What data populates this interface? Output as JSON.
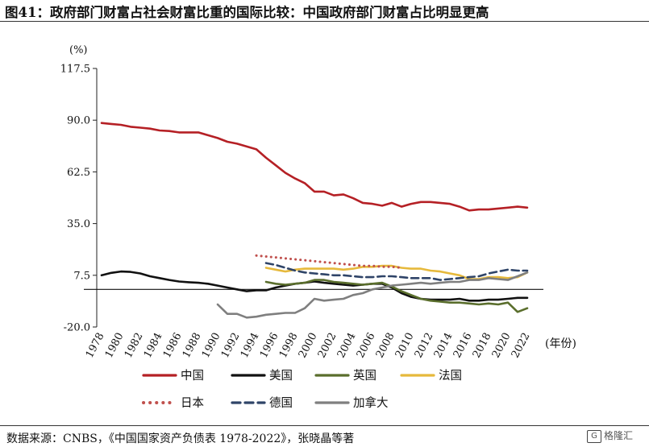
{
  "figure_title": "图41：政府部门财富占社会财富比重的国际比较：中国政府部门财富占比明显更高",
  "source": "数据来源：CNBS，《中国国家资产负债表 1978-2022》，张晓晶等著",
  "watermark": "格隆汇",
  "chart_data": {
    "type": "line",
    "ylabel": "(%)",
    "xlabel": "(年份)",
    "ylim": [
      -20.0,
      117.5
    ],
    "xlim": [
      1977.5,
      2023.5
    ],
    "yticks": [
      "117.5",
      "90.0",
      "62.5",
      "35.0",
      "7.5",
      "-20.0"
    ],
    "ytick_values": [
      117.5,
      90.0,
      62.5,
      35.0,
      7.5,
      -20.0
    ],
    "xticks": [
      1978,
      1980,
      1982,
      1984,
      1986,
      1988,
      1990,
      1992,
      1994,
      1996,
      1998,
      2000,
      2002,
      2004,
      2006,
      2008,
      2010,
      2012,
      2014,
      2016,
      2018,
      2020,
      2022
    ],
    "zero_line": 0,
    "grid": false,
    "legend_position": "bottom",
    "series": [
      {
        "name": "中国",
        "color": "#b52025",
        "dash": "solid",
        "points": [
          [
            1978,
            88.5
          ],
          [
            1979,
            88
          ],
          [
            1980,
            87.5
          ],
          [
            1981,
            86.5
          ],
          [
            1982,
            86
          ],
          [
            1983,
            85.5
          ],
          [
            1984,
            84.5
          ],
          [
            1985,
            84.2
          ],
          [
            1986,
            83.5
          ],
          [
            1987,
            83.5
          ],
          [
            1988,
            83.5
          ],
          [
            1989,
            82
          ],
          [
            1990,
            80.5
          ],
          [
            1991,
            78.5
          ],
          [
            1992,
            77.5
          ],
          [
            1993,
            76
          ],
          [
            1994,
            74.5
          ],
          [
            1995,
            70
          ],
          [
            1996,
            66
          ],
          [
            1997,
            62
          ],
          [
            1998,
            59
          ],
          [
            1999,
            56.5
          ],
          [
            2000,
            52
          ],
          [
            2001,
            52
          ],
          [
            2002,
            50
          ],
          [
            2003,
            50.5
          ],
          [
            2004,
            48.5
          ],
          [
            2005,
            46
          ],
          [
            2006,
            45.5
          ],
          [
            2007,
            44.5
          ],
          [
            2008,
            46
          ],
          [
            2009,
            44
          ],
          [
            2010,
            45.5
          ],
          [
            2011,
            46.5
          ],
          [
            2012,
            46.5
          ],
          [
            2013,
            46
          ],
          [
            2014,
            45.5
          ],
          [
            2015,
            44
          ],
          [
            2016,
            42
          ],
          [
            2017,
            42.5
          ],
          [
            2018,
            42.5
          ],
          [
            2019,
            43
          ],
          [
            2020,
            43.5
          ],
          [
            2021,
            44
          ],
          [
            2022,
            43.5
          ]
        ]
      },
      {
        "name": "美国",
        "color": "#111111",
        "dash": "solid",
        "points": [
          [
            1978,
            7.5
          ],
          [
            1979,
            8.8
          ],
          [
            1980,
            9.5
          ],
          [
            1981,
            9.3
          ],
          [
            1982,
            8.5
          ],
          [
            1983,
            7
          ],
          [
            1984,
            6
          ],
          [
            1985,
            5
          ],
          [
            1986,
            4.2
          ],
          [
            1987,
            3.8
          ],
          [
            1988,
            3.5
          ],
          [
            1989,
            3
          ],
          [
            1990,
            2
          ],
          [
            1991,
            1
          ],
          [
            1992,
            0
          ],
          [
            1993,
            -1
          ],
          [
            1994,
            -0.5
          ],
          [
            1995,
            -0.5
          ],
          [
            1996,
            1
          ],
          [
            1997,
            2
          ],
          [
            1998,
            3
          ],
          [
            1999,
            3.5
          ],
          [
            2000,
            4.2
          ],
          [
            2001,
            3.5
          ],
          [
            2002,
            3
          ],
          [
            2003,
            2.5
          ],
          [
            2004,
            2
          ],
          [
            2005,
            2.5
          ],
          [
            2006,
            3
          ],
          [
            2007,
            3
          ],
          [
            2008,
            1
          ],
          [
            2009,
            -2
          ],
          [
            2010,
            -4
          ],
          [
            2011,
            -5
          ],
          [
            2012,
            -5.5
          ],
          [
            2013,
            -5.5
          ],
          [
            2014,
            -5.5
          ],
          [
            2015,
            -5
          ],
          [
            2016,
            -6
          ],
          [
            2017,
            -6
          ],
          [
            2018,
            -5.5
          ],
          [
            2019,
            -5.5
          ],
          [
            2020,
            -5
          ],
          [
            2021,
            -4.5
          ],
          [
            2022,
            -4.5
          ]
        ]
      },
      {
        "name": "英国",
        "color": "#5a6e2c",
        "dash": "solid",
        "points": [
          [
            1995,
            4
          ],
          [
            1996,
            3
          ],
          [
            1997,
            2.5
          ],
          [
            1998,
            3
          ],
          [
            1999,
            3.5
          ],
          [
            2000,
            5
          ],
          [
            2001,
            5
          ],
          [
            2002,
            4
          ],
          [
            2003,
            3.5
          ],
          [
            2004,
            3
          ],
          [
            2005,
            2.5
          ],
          [
            2006,
            3
          ],
          [
            2007,
            3.5
          ],
          [
            2008,
            1.5
          ],
          [
            2009,
            -1
          ],
          [
            2010,
            -3
          ],
          [
            2011,
            -5
          ],
          [
            2012,
            -6
          ],
          [
            2013,
            -6.5
          ],
          [
            2014,
            -7
          ],
          [
            2015,
            -7
          ],
          [
            2016,
            -7.5
          ],
          [
            2017,
            -8
          ],
          [
            2018,
            -7.5
          ],
          [
            2019,
            -8
          ],
          [
            2020,
            -7
          ],
          [
            2021,
            -12
          ],
          [
            2022,
            -10
          ]
        ]
      },
      {
        "name": "法国",
        "color": "#e6b93c",
        "dash": "solid",
        "points": [
          [
            1995,
            11.5
          ],
          [
            1996,
            10.5
          ],
          [
            1997,
            9.5
          ],
          [
            1998,
            10.5
          ],
          [
            1999,
            11
          ],
          [
            2000,
            11
          ],
          [
            2001,
            11
          ],
          [
            2002,
            11
          ],
          [
            2003,
            10.5
          ],
          [
            2004,
            11
          ],
          [
            2005,
            12
          ],
          [
            2006,
            12
          ],
          [
            2007,
            12.5
          ],
          [
            2008,
            12.5
          ],
          [
            2009,
            11.5
          ],
          [
            2010,
            11
          ],
          [
            2011,
            11
          ],
          [
            2012,
            10
          ],
          [
            2013,
            9.5
          ],
          [
            2014,
            8.5
          ],
          [
            2015,
            7.5
          ],
          [
            2016,
            5.5
          ],
          [
            2017,
            5.5
          ],
          [
            2018,
            6.5
          ],
          [
            2019,
            6.5
          ],
          [
            2020,
            6
          ],
          [
            2021,
            6.5
          ],
          [
            2022,
            9
          ]
        ]
      },
      {
        "name": "日本",
        "color": "#c0504d",
        "dash": "dots",
        "points": [
          [
            1994,
            18
          ],
          [
            1995,
            17.5
          ],
          [
            1996,
            17
          ],
          [
            1997,
            16.5
          ],
          [
            1998,
            16
          ],
          [
            1999,
            15.5
          ],
          [
            2000,
            15
          ],
          [
            2001,
            14.5
          ],
          [
            2002,
            14
          ],
          [
            2003,
            13.5
          ],
          [
            2004,
            13
          ],
          [
            2005,
            12.5
          ],
          [
            2006,
            12.5
          ],
          [
            2007,
            12
          ],
          [
            2008,
            12
          ],
          [
            2009,
            11.5
          ]
        ]
      },
      {
        "name": "德国",
        "color": "#2f4468",
        "dash": "dashed",
        "points": [
          [
            1995,
            14
          ],
          [
            1996,
            13
          ],
          [
            1997,
            11.5
          ],
          [
            1998,
            10
          ],
          [
            1999,
            9
          ],
          [
            2000,
            8.5
          ],
          [
            2001,
            8
          ],
          [
            2002,
            7.5
          ],
          [
            2003,
            7.5
          ],
          [
            2004,
            7
          ],
          [
            2005,
            6.5
          ],
          [
            2006,
            6.5
          ],
          [
            2007,
            7
          ],
          [
            2008,
            7
          ],
          [
            2009,
            6.5
          ],
          [
            2010,
            6
          ],
          [
            2011,
            6
          ],
          [
            2012,
            6
          ],
          [
            2013,
            5
          ],
          [
            2014,
            5.5
          ],
          [
            2015,
            6
          ],
          [
            2016,
            6.5
          ],
          [
            2017,
            7
          ],
          [
            2018,
            8.5
          ],
          [
            2019,
            9.5
          ],
          [
            2020,
            10.5
          ],
          [
            2021,
            10
          ],
          [
            2022,
            10
          ]
        ]
      },
      {
        "name": "加拿大",
        "color": "#7f7f7f",
        "dash": "solid",
        "points": [
          [
            1990,
            -8
          ],
          [
            1991,
            -13
          ],
          [
            1992,
            -13
          ],
          [
            1993,
            -15
          ],
          [
            1994,
            -14.5
          ],
          [
            1995,
            -13.5
          ],
          [
            1996,
            -13
          ],
          [
            1997,
            -12.5
          ],
          [
            1998,
            -12.5
          ],
          [
            1999,
            -10
          ],
          [
            2000,
            -5
          ],
          [
            2001,
            -6
          ],
          [
            2002,
            -5.5
          ],
          [
            2003,
            -5
          ],
          [
            2004,
            -3
          ],
          [
            2005,
            -2
          ],
          [
            2006,
            0
          ],
          [
            2007,
            1
          ],
          [
            2008,
            2
          ],
          [
            2009,
            2.5
          ],
          [
            2010,
            3
          ],
          [
            2011,
            3.5
          ],
          [
            2012,
            3
          ],
          [
            2013,
            3.5
          ],
          [
            2014,
            4
          ],
          [
            2015,
            4
          ],
          [
            2016,
            5
          ],
          [
            2017,
            5
          ],
          [
            2018,
            6
          ],
          [
            2019,
            5.5
          ],
          [
            2020,
            5
          ],
          [
            2021,
            7
          ],
          [
            2022,
            9
          ]
        ]
      }
    ]
  }
}
